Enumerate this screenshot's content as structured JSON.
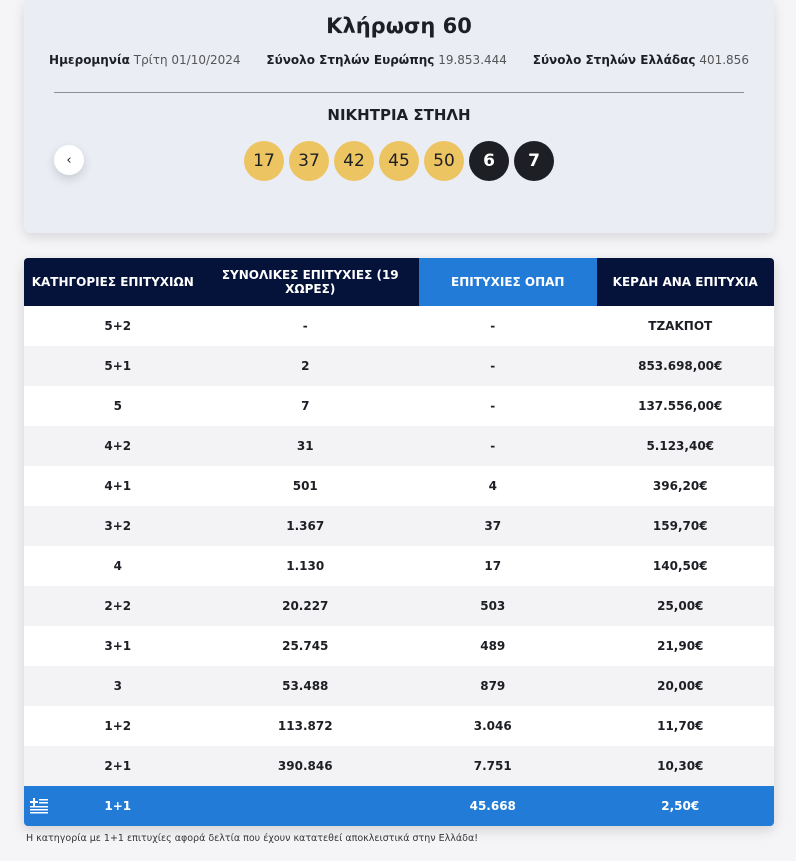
{
  "draw": {
    "title": "Κλήρωση 60",
    "date_label": "Ημερομηνία",
    "date_value": "Τρίτη 01/10/2024",
    "europe_label": "Σύνολο Στηλών Ευρώπης",
    "europe_value": "19.853.444",
    "greece_label": "Σύνολο Στηλών Ελλάδας",
    "greece_value": "401.856",
    "winning_label": "ΝΙΚΗΤΡΙΑ ΣΤΗΛΗ",
    "numbers": [
      "17",
      "37",
      "42",
      "45",
      "50"
    ],
    "euro_numbers": [
      "6",
      "7"
    ],
    "prev_icon": "chevron-left-icon"
  },
  "table": {
    "headers": [
      "ΚΑΤΗΓΟΡΙΕΣ ΕΠΙΤΥΧΙΩΝ",
      "ΣΥΝΟΛΙΚΕΣ ΕΠΙΤΥΧΙΕΣ (19 ΧΩΡΕΣ)",
      "ΕΠΙΤΥΧΙΕΣ ΟΠΑΠ",
      "ΚΕΡΔΗ ΑΝΑ ΕΠΙΤΥΧΙΑ"
    ],
    "rows": [
      [
        "5+2",
        "-",
        "-",
        "ΤΖΑΚΠΟΤ"
      ],
      [
        "5+1",
        "2",
        "-",
        "853.698,00€"
      ],
      [
        "5",
        "7",
        "-",
        "137.556,00€"
      ],
      [
        "4+2",
        "31",
        "-",
        "5.123,40€"
      ],
      [
        "4+1",
        "501",
        "4",
        "396,20€"
      ],
      [
        "3+2",
        "1.367",
        "37",
        "159,70€"
      ],
      [
        "4",
        "1.130",
        "17",
        "140,50€"
      ],
      [
        "2+2",
        "20.227",
        "503",
        "25,00€"
      ],
      [
        "3+1",
        "25.745",
        "489",
        "21,90€"
      ],
      [
        "3",
        "53.488",
        "879",
        "20,00€"
      ],
      [
        "1+2",
        "113.872",
        "3.046",
        "11,70€"
      ],
      [
        "2+1",
        "390.846",
        "7.751",
        "10,30€"
      ]
    ],
    "greek_row": [
      "1+1",
      "",
      "45.668",
      "2,50€"
    ],
    "greek_icon": "greek-flag-icon",
    "colors": {
      "header": "#05123a",
      "accent": "#217bd7",
      "ball": "#ecc462",
      "ball_dark": "#1d1f24"
    }
  },
  "note": "Η κατηγορία με 1+1 επιτυχίες αφορά δελτία που έχουν κατατεθεί αποκλειστικά στην Ελλάδα!"
}
